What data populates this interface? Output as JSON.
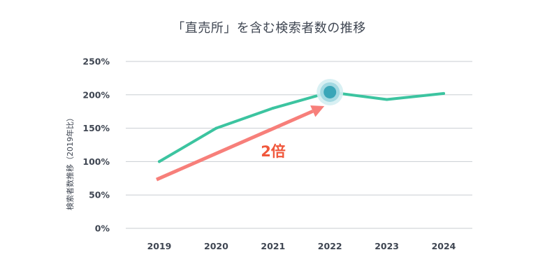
{
  "chart_data": {
    "type": "line",
    "title": "「直売所」を含む検索者数の推移",
    "ylabel": "検索者数推移（2019年比）",
    "xlabel": "",
    "categories": [
      "2019",
      "2020",
      "2021",
      "2022",
      "2023",
      "2024"
    ],
    "yticks": [
      "0%",
      "50%",
      "100%",
      "150%",
      "200%",
      "250%"
    ],
    "ylim": [
      0,
      250
    ],
    "grid": true,
    "series": [
      {
        "values": [
          100,
          150,
          180,
          204,
          193,
          202
        ],
        "color": "#3cc4a0"
      }
    ],
    "highlight": {
      "category": "2022",
      "value": 204,
      "color": "#3aa6b8"
    },
    "annotation": {
      "text": "2倍",
      "color": "#f0573b",
      "arrow_color": "#f77f7a",
      "arrow_from": {
        "x": "2019",
        "y": 73
      },
      "arrow_to": {
        "x": "2022",
        "y": 183
      }
    }
  }
}
